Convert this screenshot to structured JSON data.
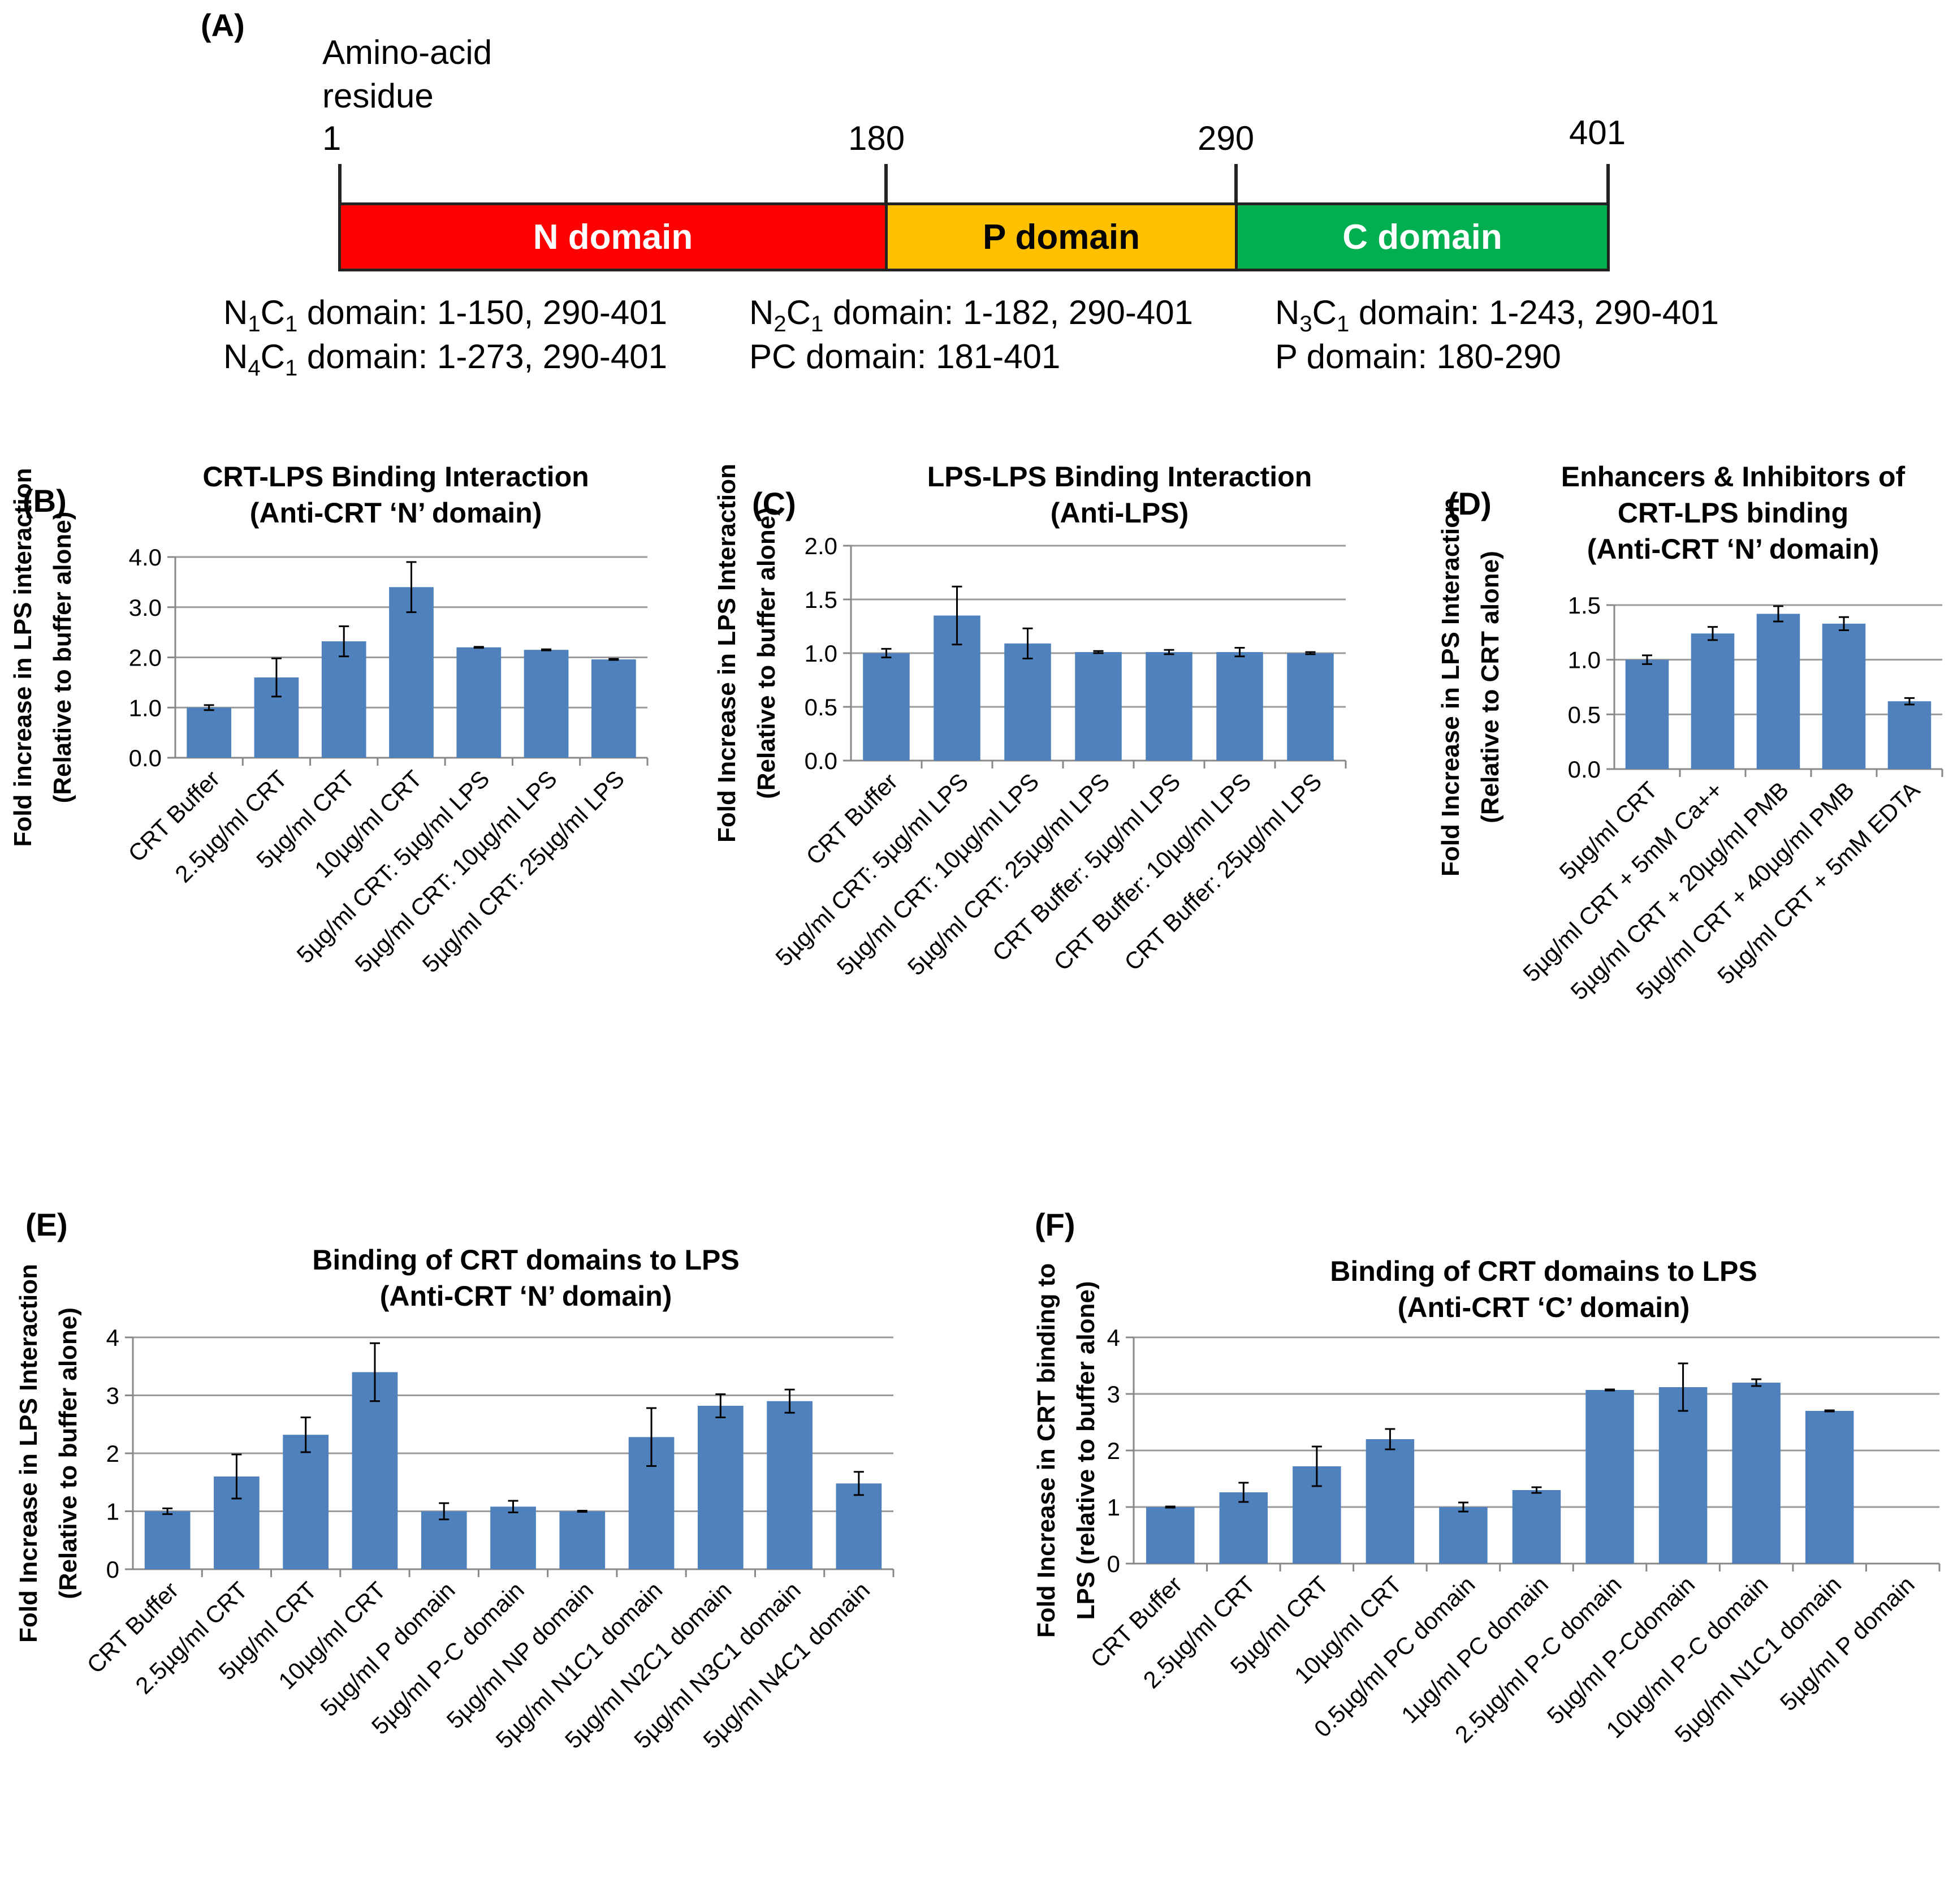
{
  "panel_a": {
    "letter": "(A)",
    "title_line1": "Amino-acid",
    "title_line2": "residue",
    "residues": [
      "1",
      "180",
      "290",
      "401"
    ],
    "domains": [
      {
        "label": "N domain",
        "color": "#ff0000",
        "text_color": "#ffffff"
      },
      {
        "label": "P domain",
        "color": "#ffc000",
        "text_color": "#000000"
      },
      {
        "label": "C domain",
        "color": "#00b050",
        "text_color": "#ffffff"
      }
    ],
    "constructs": [
      {
        "name": "N",
        "sub1": "1",
        "mid": "C",
        "sub2": "1",
        "range": " domain: 1-150, 290-401"
      },
      {
        "name": "N",
        "sub1": "2",
        "mid": "C",
        "sub2": "1",
        "range": " domain: 1-182, 290-401"
      },
      {
        "name": "N",
        "sub1": "3",
        "mid": "C",
        "sub2": "1",
        "range": " domain: 1-243, 290-401"
      },
      {
        "name": "N",
        "sub1": "4",
        "mid": "C",
        "sub2": "1",
        "range": " domain: 1-273, 290-401"
      }
    ],
    "pc_domain": "PC domain: 181-401",
    "p_domain": "P domain: 180-290"
  },
  "chart_data": [
    {
      "id": "B",
      "letter": "(B)",
      "type": "bar",
      "title_lines": [
        "CRT-LPS Binding Interaction",
        "(Anti-CRT ‘N’ domain)"
      ],
      "ylabel_lines": [
        "Fold increase in LPS interaction",
        "(Relative to buffer alone)"
      ],
      "ylim": [
        0,
        4
      ],
      "yticks": [
        0,
        1,
        2,
        3,
        4
      ],
      "yticklabels": [
        "0.0",
        "1.0",
        "2.0",
        "3.0",
        "4.0"
      ],
      "categories": [
        "CRT Buffer",
        "2.5µg/ml CRT",
        "5µg/ml CRT",
        "10µg/ml CRT",
        "5µg/ml CRT: 5µg/ml LPS",
        "5µg/ml CRT: 10µg/ml LPS",
        "5µg/ml CRT: 25µg/ml LPS"
      ],
      "values": [
        1.0,
        1.6,
        2.32,
        3.4,
        2.2,
        2.15,
        1.96
      ],
      "errors": [
        0.05,
        0.38,
        0.3,
        0.5,
        0.01,
        0.01,
        0.01
      ],
      "bar_color": "#4f81bd"
    },
    {
      "id": "C",
      "letter": "(C)",
      "type": "bar",
      "title_lines": [
        "LPS-LPS Binding Interaction",
        "(Anti-LPS)"
      ],
      "ylabel_lines": [
        "Fold Increase in LPS Interaction",
        "(Relative to buffer alone)"
      ],
      "ylim": [
        0,
        2
      ],
      "yticks": [
        0,
        0.5,
        1,
        1.5,
        2
      ],
      "yticklabels": [
        "0.0",
        "0.5",
        "1.0",
        "1.5",
        "2.0"
      ],
      "categories": [
        "CRT Buffer",
        "5µg/ml CRT: 5µg/ml LPS",
        "5µg/ml CRT: 10µg/ml LPS",
        "5µg/ml CRT: 25µg/ml LPS",
        "CRT Buffer: 5µg/ml LPS",
        "CRT Buffer: 10µg/ml LPS",
        "CRT Buffer: 25µg/ml LPS"
      ],
      "values": [
        1.0,
        1.35,
        1.09,
        1.01,
        1.01,
        1.01,
        1.0
      ],
      "errors": [
        0.04,
        0.27,
        0.14,
        0.01,
        0.02,
        0.04,
        0.01
      ],
      "bar_color": "#4f81bd"
    },
    {
      "id": "D",
      "letter": "(D)",
      "type": "bar",
      "title_lines": [
        "Enhancers & Inhibitors of",
        "CRT-LPS binding",
        "(Anti-CRT ‘N’ domain)"
      ],
      "ylabel_lines": [
        "Fold Increase in LPS Interaction",
        "(Relative to CRT alone)"
      ],
      "ylim": [
        0,
        1.5
      ],
      "yticks": [
        0,
        0.5,
        1,
        1.5
      ],
      "yticklabels": [
        "0.0",
        "0.5",
        "1.0",
        "1.5"
      ],
      "categories": [
        "5µg/ml CRT",
        "5µg/ml CRT + 5mM Ca++",
        "5µg/ml CRT + 20µg/ml PMB",
        "5µg/ml CRT + 40µg/ml PMB",
        "5µg/ml CRT + 5mM EDTA"
      ],
      "values": [
        1.0,
        1.24,
        1.42,
        1.33,
        0.62
      ],
      "errors": [
        0.04,
        0.06,
        0.07,
        0.06,
        0.03
      ],
      "bar_color": "#4f81bd"
    },
    {
      "id": "E",
      "letter": "(E)",
      "type": "bar",
      "title_lines": [
        "Binding of CRT domains to LPS",
        "(Anti-CRT ‘N’ domain)"
      ],
      "ylabel_lines": [
        "Fold Increase in LPS Interaction",
        "(Relative to buffer alone)"
      ],
      "ylim": [
        0,
        4
      ],
      "yticks": [
        0,
        1,
        2,
        3,
        4
      ],
      "yticklabels": [
        "0",
        "1",
        "2",
        "3",
        "4"
      ],
      "categories": [
        "CRT Buffer",
        "2.5µg/ml CRT",
        "5µg/ml CRT",
        "10µg/ml CRT",
        "5µg/ml P domain",
        "5µg/ml P-C domain",
        "5µg/ml NP domain",
        "5µg/ml N1C1 domain",
        "5µg/ml N2C1 domain",
        "5µg/ml N3C1 domain",
        "5µg/ml N4C1 domain"
      ],
      "values": [
        1.0,
        1.6,
        2.32,
        3.4,
        1.0,
        1.08,
        1.0,
        2.28,
        2.82,
        2.9,
        1.48
      ],
      "errors": [
        0.05,
        0.38,
        0.3,
        0.5,
        0.14,
        0.1,
        0.01,
        0.5,
        0.2,
        0.2,
        0.2
      ],
      "bar_color": "#4f81bd"
    },
    {
      "id": "F",
      "letter": "(F)",
      "type": "bar",
      "title_lines": [
        "Binding of CRT domains to LPS",
        "(Anti-CRT ‘C’ domain)"
      ],
      "ylabel_lines": [
        "Fold Increase in CRT binding to",
        "LPS (relative to buffer alone)"
      ],
      "ylim": [
        0,
        4
      ],
      "yticks": [
        0,
        1,
        2,
        3,
        4
      ],
      "yticklabels": [
        "0",
        "1",
        "2",
        "3",
        "4"
      ],
      "categories": [
        "CRT Buffer",
        "2.5µg/ml CRT",
        "5µg/ml CRT",
        "10µg/ml CRT",
        "0.5µg/ml PC domain",
        "1µg/ml  PC domain",
        "2.5µg/ml P-C domain",
        "5µg/ml P-Cdomain",
        "10µg/ml P-C domain",
        "5µg/ml N1C1 domain",
        "5µg/ml P domain"
      ],
      "values": [
        1.0,
        1.26,
        1.72,
        2.2,
        1.0,
        1.3,
        3.07,
        3.12,
        3.2,
        2.7,
        0
      ],
      "errors": [
        0.01,
        0.17,
        0.35,
        0.18,
        0.08,
        0.05,
        0.01,
        0.42,
        0.06,
        0.01,
        0
      ],
      "bar_color": "#4f81bd"
    }
  ]
}
